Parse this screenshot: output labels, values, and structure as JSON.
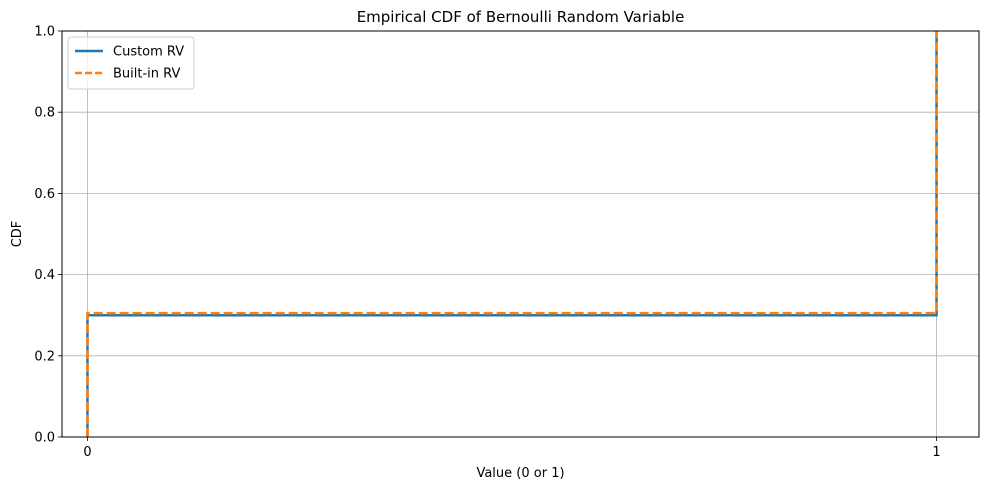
{
  "chart_data": {
    "type": "line",
    "title": "Empirical CDF of Bernoulli Random Variable",
    "xlabel": "Value (0 or 1)",
    "ylabel": "CDF",
    "xlim": [
      -0.03,
      1.05
    ],
    "ylim": [
      0,
      1
    ],
    "xticks": [
      0,
      1
    ],
    "xtick_labels": [
      "0",
      "1"
    ],
    "yticks": [
      0.0,
      0.2,
      0.4,
      0.6,
      0.8,
      1.0
    ],
    "ytick_labels": [
      "0.0",
      "0.2",
      "0.4",
      "0.6",
      "0.8",
      "1.0"
    ],
    "grid": true,
    "legend_position": "upper-left",
    "series": [
      {
        "name": "Custom RV",
        "color": "#1f77b4",
        "style": "solid",
        "x": [
          0,
          0,
          1,
          1
        ],
        "y": [
          0,
          0.3,
          0.3,
          1.0
        ]
      },
      {
        "name": "Built-in RV",
        "color": "#ff7f0e",
        "style": "dashed",
        "x": [
          0,
          0,
          1,
          1
        ],
        "y": [
          0,
          0.305,
          0.305,
          1.0
        ]
      }
    ]
  }
}
